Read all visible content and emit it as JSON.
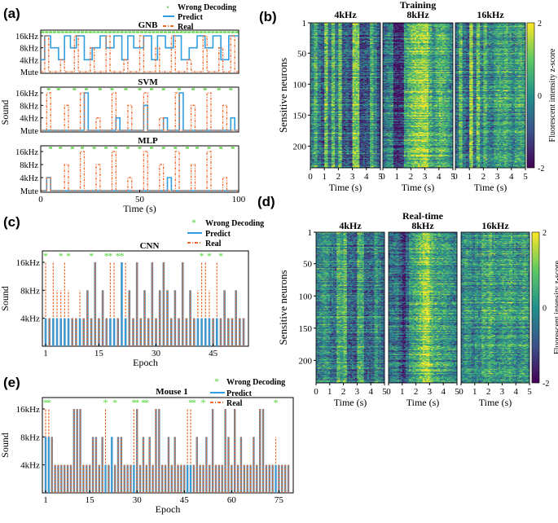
{
  "panels": {
    "a": "(a)",
    "b": "(b)",
    "c": "(c)",
    "d": "(d)",
    "e": "(e)"
  },
  "legend": {
    "wrong": "Wrong Decoding",
    "predict": "Predict",
    "real": "Real"
  },
  "colors": {
    "predict": "#2f9ee0",
    "real": "#f0692a",
    "wrong": "#55d43a",
    "axis": "#000000",
    "stem": "#5f8aa8"
  },
  "chart_data": [
    {
      "id": "a",
      "type": "line",
      "ylabel": "Sound",
      "xlabel": "Time (s)",
      "x_ticks": [
        "0",
        "50",
        "100"
      ],
      "xlim": [
        0,
        100
      ],
      "levels": [
        "Mute",
        "4kHz",
        "8kHz",
        "16kHz"
      ],
      "subplots": [
        {
          "title": "GNB",
          "real": [
            [
              0,
              0
            ],
            [
              2,
              3
            ],
            [
              4,
              0
            ],
            [
              10,
              1
            ],
            [
              12,
              0
            ],
            [
              17,
              3
            ],
            [
              19,
              0
            ],
            [
              25,
              2
            ],
            [
              27,
              0
            ],
            [
              33,
              3
            ],
            [
              35,
              0
            ],
            [
              42,
              1
            ],
            [
              44,
              0
            ],
            [
              50,
              3
            ],
            [
              52,
              0
            ],
            [
              58,
              2
            ],
            [
              60,
              0
            ],
            [
              66,
              3
            ],
            [
              68,
              0
            ],
            [
              74,
              1
            ],
            [
              76,
              0
            ],
            [
              82,
              3
            ],
            [
              84,
              0
            ],
            [
              90,
              2
            ],
            [
              92,
              0
            ],
            [
              96,
              3
            ],
            [
              98,
              0
            ]
          ],
          "predict": [
            [
              0,
              1
            ],
            [
              2,
              3
            ],
            [
              5,
              2
            ],
            [
              9,
              1
            ],
            [
              12,
              3
            ],
            [
              15,
              2
            ],
            [
              18,
              3
            ],
            [
              22,
              1
            ],
            [
              26,
              2
            ],
            [
              30,
              3
            ],
            [
              33,
              2
            ],
            [
              37,
              3
            ],
            [
              41,
              1
            ],
            [
              44,
              3
            ],
            [
              47,
              2
            ],
            [
              52,
              3
            ],
            [
              56,
              1
            ],
            [
              59,
              3
            ],
            [
              63,
              2
            ],
            [
              67,
              3
            ],
            [
              71,
              1
            ],
            [
              75,
              2
            ],
            [
              79,
              3
            ],
            [
              83,
              2
            ],
            [
              87,
              3
            ],
            [
              91,
              1
            ],
            [
              95,
              3
            ],
            [
              100,
              3
            ]
          ],
          "wrong": [
            1,
            3,
            5,
            7,
            9,
            11,
            13,
            15,
            17,
            19,
            21,
            23,
            25,
            27,
            29,
            31,
            33,
            35,
            37,
            39,
            41,
            43,
            45,
            47,
            49,
            51,
            53,
            55,
            57,
            59,
            61,
            63,
            65,
            67,
            69,
            71,
            73,
            75,
            77,
            79,
            81,
            83,
            85,
            87,
            89,
            91,
            93,
            95,
            97,
            99
          ]
        },
        {
          "title": "SVM",
          "real": [
            [
              0,
              0
            ],
            [
              3,
              3
            ],
            [
              5,
              0
            ],
            [
              12,
              2
            ],
            [
              14,
              0
            ],
            [
              20,
              3
            ],
            [
              22,
              0
            ],
            [
              28,
              1
            ],
            [
              30,
              0
            ],
            [
              36,
              3
            ],
            [
              38,
              0
            ],
            [
              44,
              2
            ],
            [
              46,
              0
            ],
            [
              52,
              3
            ],
            [
              54,
              0
            ],
            [
              60,
              1
            ],
            [
              62,
              0
            ],
            [
              68,
              3
            ],
            [
              70,
              0
            ],
            [
              76,
              2
            ],
            [
              78,
              0
            ],
            [
              84,
              3
            ],
            [
              86,
              0
            ],
            [
              92,
              2
            ],
            [
              94,
              0
            ]
          ],
          "predict": [
            [
              0,
              0
            ],
            [
              22,
              3
            ],
            [
              24,
              0
            ],
            [
              38,
              1
            ],
            [
              40,
              0
            ],
            [
              52,
              2
            ],
            [
              54,
              0
            ],
            [
              62,
              1
            ],
            [
              64,
              0
            ],
            [
              70,
              3
            ],
            [
              72,
              0
            ],
            [
              96,
              1
            ],
            [
              98,
              0
            ]
          ],
          "wrong": [
            4,
            9,
            17,
            23,
            30,
            36,
            43,
            50,
            56,
            62,
            70,
            77,
            83,
            90,
            96
          ]
        },
        {
          "title": "MLP",
          "real": [
            [
              0,
              0
            ],
            [
              3,
              1
            ],
            [
              5,
              0
            ],
            [
              12,
              2
            ],
            [
              14,
              0
            ],
            [
              20,
              3
            ],
            [
              22,
              0
            ],
            [
              28,
              2
            ],
            [
              30,
              0
            ],
            [
              36,
              3
            ],
            [
              38,
              0
            ],
            [
              44,
              1
            ],
            [
              46,
              0
            ],
            [
              52,
              3
            ],
            [
              54,
              0
            ],
            [
              60,
              2
            ],
            [
              62,
              0
            ],
            [
              68,
              3
            ],
            [
              70,
              0
            ],
            [
              76,
              2
            ],
            [
              78,
              0
            ],
            [
              84,
              3
            ],
            [
              86,
              0
            ],
            [
              92,
              1
            ],
            [
              94,
              0
            ]
          ],
          "predict": [
            [
              0,
              0
            ],
            [
              3,
              1
            ],
            [
              5,
              0
            ],
            [
              64,
              1
            ],
            [
              66,
              0
            ]
          ],
          "wrong": [
            5,
            10,
            16,
            21,
            27,
            33,
            38,
            44,
            50,
            56,
            62,
            68,
            74,
            79,
            85,
            91,
            97
          ]
        }
      ]
    },
    {
      "id": "c",
      "type": "bar",
      "title": "CNN",
      "ylabel": "Sound",
      "xlabel": "Epoch",
      "levels": [
        "4kHz",
        "8kHz",
        "16kHz"
      ],
      "x_ticks": [
        "1",
        "15",
        "30",
        "45"
      ],
      "n": 53,
      "real": [
        3,
        1,
        3,
        2,
        2,
        3,
        2,
        1,
        1,
        2,
        1,
        2,
        1,
        3,
        1,
        2,
        1,
        3,
        3,
        1,
        2,
        3,
        2,
        1,
        3,
        1,
        2,
        1,
        3,
        1,
        2,
        3,
        2,
        1,
        2,
        1,
        3,
        1,
        2,
        1,
        2,
        3,
        3,
        2,
        1,
        3,
        1,
        2,
        1,
        1,
        2,
        1,
        1
      ],
      "predict": [
        1,
        1,
        1,
        1,
        1,
        1,
        1,
        1,
        1,
        1,
        1,
        2,
        1,
        3,
        1,
        2,
        1,
        1,
        1,
        1,
        3,
        1,
        2,
        1,
        3,
        1,
        2,
        1,
        3,
        1,
        2,
        3,
        2,
        1,
        2,
        1,
        3,
        1,
        2,
        1,
        1,
        1,
        1,
        1,
        1,
        1,
        1,
        2,
        1,
        1,
        2,
        1,
        1
      ],
      "wrong": [
        1,
        5,
        7,
        13,
        17,
        18,
        20,
        21,
        42,
        44,
        47
      ]
    },
    {
      "id": "e",
      "type": "bar",
      "title": "Mouse 1",
      "ylabel": "Sound",
      "xlabel": "Epoch",
      "levels": [
        "4kHz",
        "8kHz",
        "16kHz"
      ],
      "x_ticks": [
        "1",
        "15",
        "30",
        "45",
        "60",
        "75"
      ],
      "n": 78,
      "real": [
        3,
        3,
        2,
        1,
        1,
        1,
        1,
        1,
        1,
        3,
        3,
        3,
        1,
        1,
        1,
        2,
        2,
        1,
        2,
        3,
        1,
        1,
        1,
        2,
        2,
        1,
        1,
        1,
        3,
        3,
        1,
        2,
        1,
        2,
        1,
        3,
        3,
        1,
        1,
        2,
        1,
        2,
        1,
        1,
        1,
        3,
        3,
        1,
        2,
        1,
        1,
        2,
        1,
        3,
        1,
        1,
        1,
        3,
        2,
        1,
        3,
        1,
        2,
        1,
        1,
        1,
        2,
        1,
        3,
        3,
        1,
        1,
        1,
        2,
        1,
        1,
        1,
        1
      ],
      "predict": [
        2,
        2,
        2,
        1,
        1,
        1,
        1,
        1,
        1,
        3,
        3,
        3,
        1,
        1,
        1,
        2,
        2,
        1,
        2,
        1,
        1,
        2,
        1,
        2,
        2,
        1,
        1,
        1,
        1,
        3,
        1,
        2,
        1,
        2,
        1,
        3,
        3,
        1,
        1,
        2,
        1,
        2,
        1,
        1,
        1,
        1,
        1,
        1,
        2,
        1,
        1,
        2,
        1,
        3,
        1,
        1,
        1,
        3,
        2,
        1,
        3,
        1,
        2,
        1,
        1,
        1,
        2,
        1,
        3,
        3,
        1,
        1,
        1,
        1,
        1,
        1,
        1,
        1
      ],
      "wrong": [
        1,
        2,
        20,
        23,
        29,
        30,
        32,
        33,
        47,
        48,
        51,
        74
      ]
    },
    {
      "id": "b",
      "type": "heatmap",
      "title": "Training",
      "ylabel": "Sensitive neurons",
      "subtitles": [
        "4kHz",
        "8kHz",
        "16kHz"
      ],
      "xlabel": "Time (s)",
      "x_ticks": [
        "0",
        "1",
        "2",
        "3",
        "4",
        "5"
      ],
      "y_ticks": [
        "1",
        "50",
        "100",
        "150",
        "200"
      ],
      "rows": 235,
      "colorbar_label": "Fluorescent intensity z-score",
      "colorbar_ticks": [
        "2",
        "0",
        "-2"
      ],
      "vmin": -2,
      "vmax": 2,
      "profiles": [
        [
          -0.2,
          0.6,
          -0.3,
          -0.9,
          1.0,
          -0.5,
          0.8,
          -0.4,
          0.9,
          -0.8,
          -0.6,
          -1.0,
          1.2,
          1.0,
          -1.1,
          -0.9,
          -0.8,
          0.6,
          -0.2,
          -0.9
        ],
        [
          -0.6,
          -0.2,
          -0.1,
          -1.5,
          -1.6,
          -1.4,
          0.3,
          0.6,
          1.0,
          1.2,
          1.3,
          1.5,
          1.4,
          0.6,
          0.1,
          0.5,
          0.8,
          0.6,
          0.3,
          -0.2
        ],
        [
          -0.6,
          0.8,
          -0.4,
          -0.8,
          1.3,
          -0.5,
          0.9,
          -0.3,
          0.6,
          -0.2,
          -0.4,
          0.2,
          0.4,
          0.2,
          0.5,
          0.1,
          -0.2,
          0.2,
          0.4,
          0.2
        ]
      ]
    },
    {
      "id": "d",
      "type": "heatmap",
      "title": "Real-time",
      "ylabel": "Sensitive neurons",
      "subtitles": [
        "4kHz",
        "8kHz",
        "16kHz"
      ],
      "xlabel": "Time (s)",
      "x_ticks": [
        "0",
        "1",
        "2",
        "3",
        "4",
        "5"
      ],
      "y_ticks": [
        "1",
        "50",
        "100",
        "150",
        "200"
      ],
      "rows": 235,
      "colorbar_label": "Fluorescent intensity z-score",
      "colorbar_ticks": [
        "2",
        "0",
        "-2"
      ],
      "vmin": -2,
      "vmax": 2,
      "profiles": [
        [
          -0.3,
          -0.1,
          0.2,
          0.0,
          -0.4,
          -0.5,
          0.6,
          0.3,
          0.8,
          -0.6,
          -0.6,
          -0.8,
          0.6,
          0.4,
          -0.7,
          -0.6,
          -0.6,
          0.2,
          -0.3,
          -0.6
        ],
        [
          -0.5,
          -0.4,
          -0.3,
          -0.8,
          -1.5,
          -0.6,
          0.2,
          0.3,
          0.6,
          1.0,
          1.5,
          1.6,
          0.8,
          0.4,
          0.4,
          0.2,
          0.3,
          0.1,
          -0.1,
          -0.2
        ],
        [
          -0.3,
          0.2,
          0.0,
          -0.3,
          0.0,
          -0.2,
          0.4,
          0.2,
          0.6,
          0.2,
          -0.1,
          0.1,
          0.3,
          0.2,
          0.4,
          0.1,
          -0.1,
          0.1,
          0.3,
          0.1
        ]
      ]
    }
  ]
}
